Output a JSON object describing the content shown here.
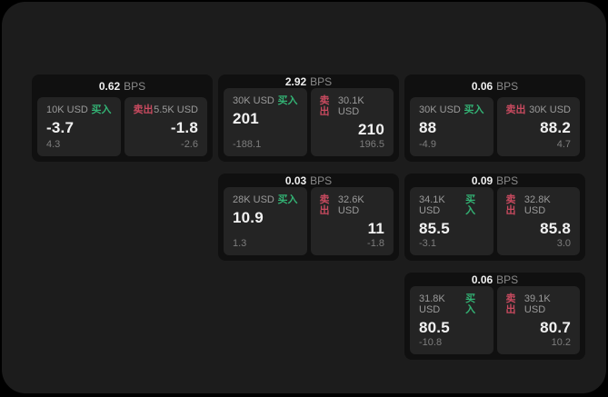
{
  "labels": {
    "bps_unit": "BPS",
    "buy": "买入",
    "sell": "卖出"
  },
  "colors": {
    "frame_bg": "#000000",
    "window_bg": "#1c1c1c",
    "card_bg": "#101010",
    "panel_bg": "#242424",
    "buy_green": "#33b274",
    "sell_red": "#c84a5f",
    "value_text": "#f2f2f2",
    "muted_text": "#8a8a8a"
  },
  "cards": [
    {
      "bps": "0.62",
      "buy": {
        "size": "10K USD",
        "value": "-3.7",
        "sub": "4.3"
      },
      "sell": {
        "size": "5.5K USD",
        "value": "-1.8",
        "sub": "-2.6"
      }
    },
    {
      "bps": "2.92",
      "buy": {
        "size": "30K USD",
        "value": "201",
        "sub": "-188.1"
      },
      "sell": {
        "size": "30.1K USD",
        "value": "210",
        "sub": "196.5"
      }
    },
    {
      "bps": "0.06",
      "buy": {
        "size": "30K USD",
        "value": "88",
        "sub": "-4.9"
      },
      "sell": {
        "size": "30K USD",
        "value": "88.2",
        "sub": "4.7"
      }
    },
    {
      "bps": "0.03",
      "buy": {
        "size": "28K USD",
        "value": "10.9",
        "sub": "1.3"
      },
      "sell": {
        "size": "32.6K USD",
        "value": "11",
        "sub": "-1.8"
      }
    },
    {
      "bps": "0.09",
      "buy": {
        "size": "34.1K USD",
        "value": "85.5",
        "sub": "-3.1"
      },
      "sell": {
        "size": "32.8K USD",
        "value": "85.8",
        "sub": "3.0"
      }
    },
    {
      "bps": "0.06",
      "buy": {
        "size": "31.8K USD",
        "value": "80.5",
        "sub": "-10.8"
      },
      "sell": {
        "size": "39.1K USD",
        "value": "80.7",
        "sub": "10.2"
      }
    }
  ]
}
